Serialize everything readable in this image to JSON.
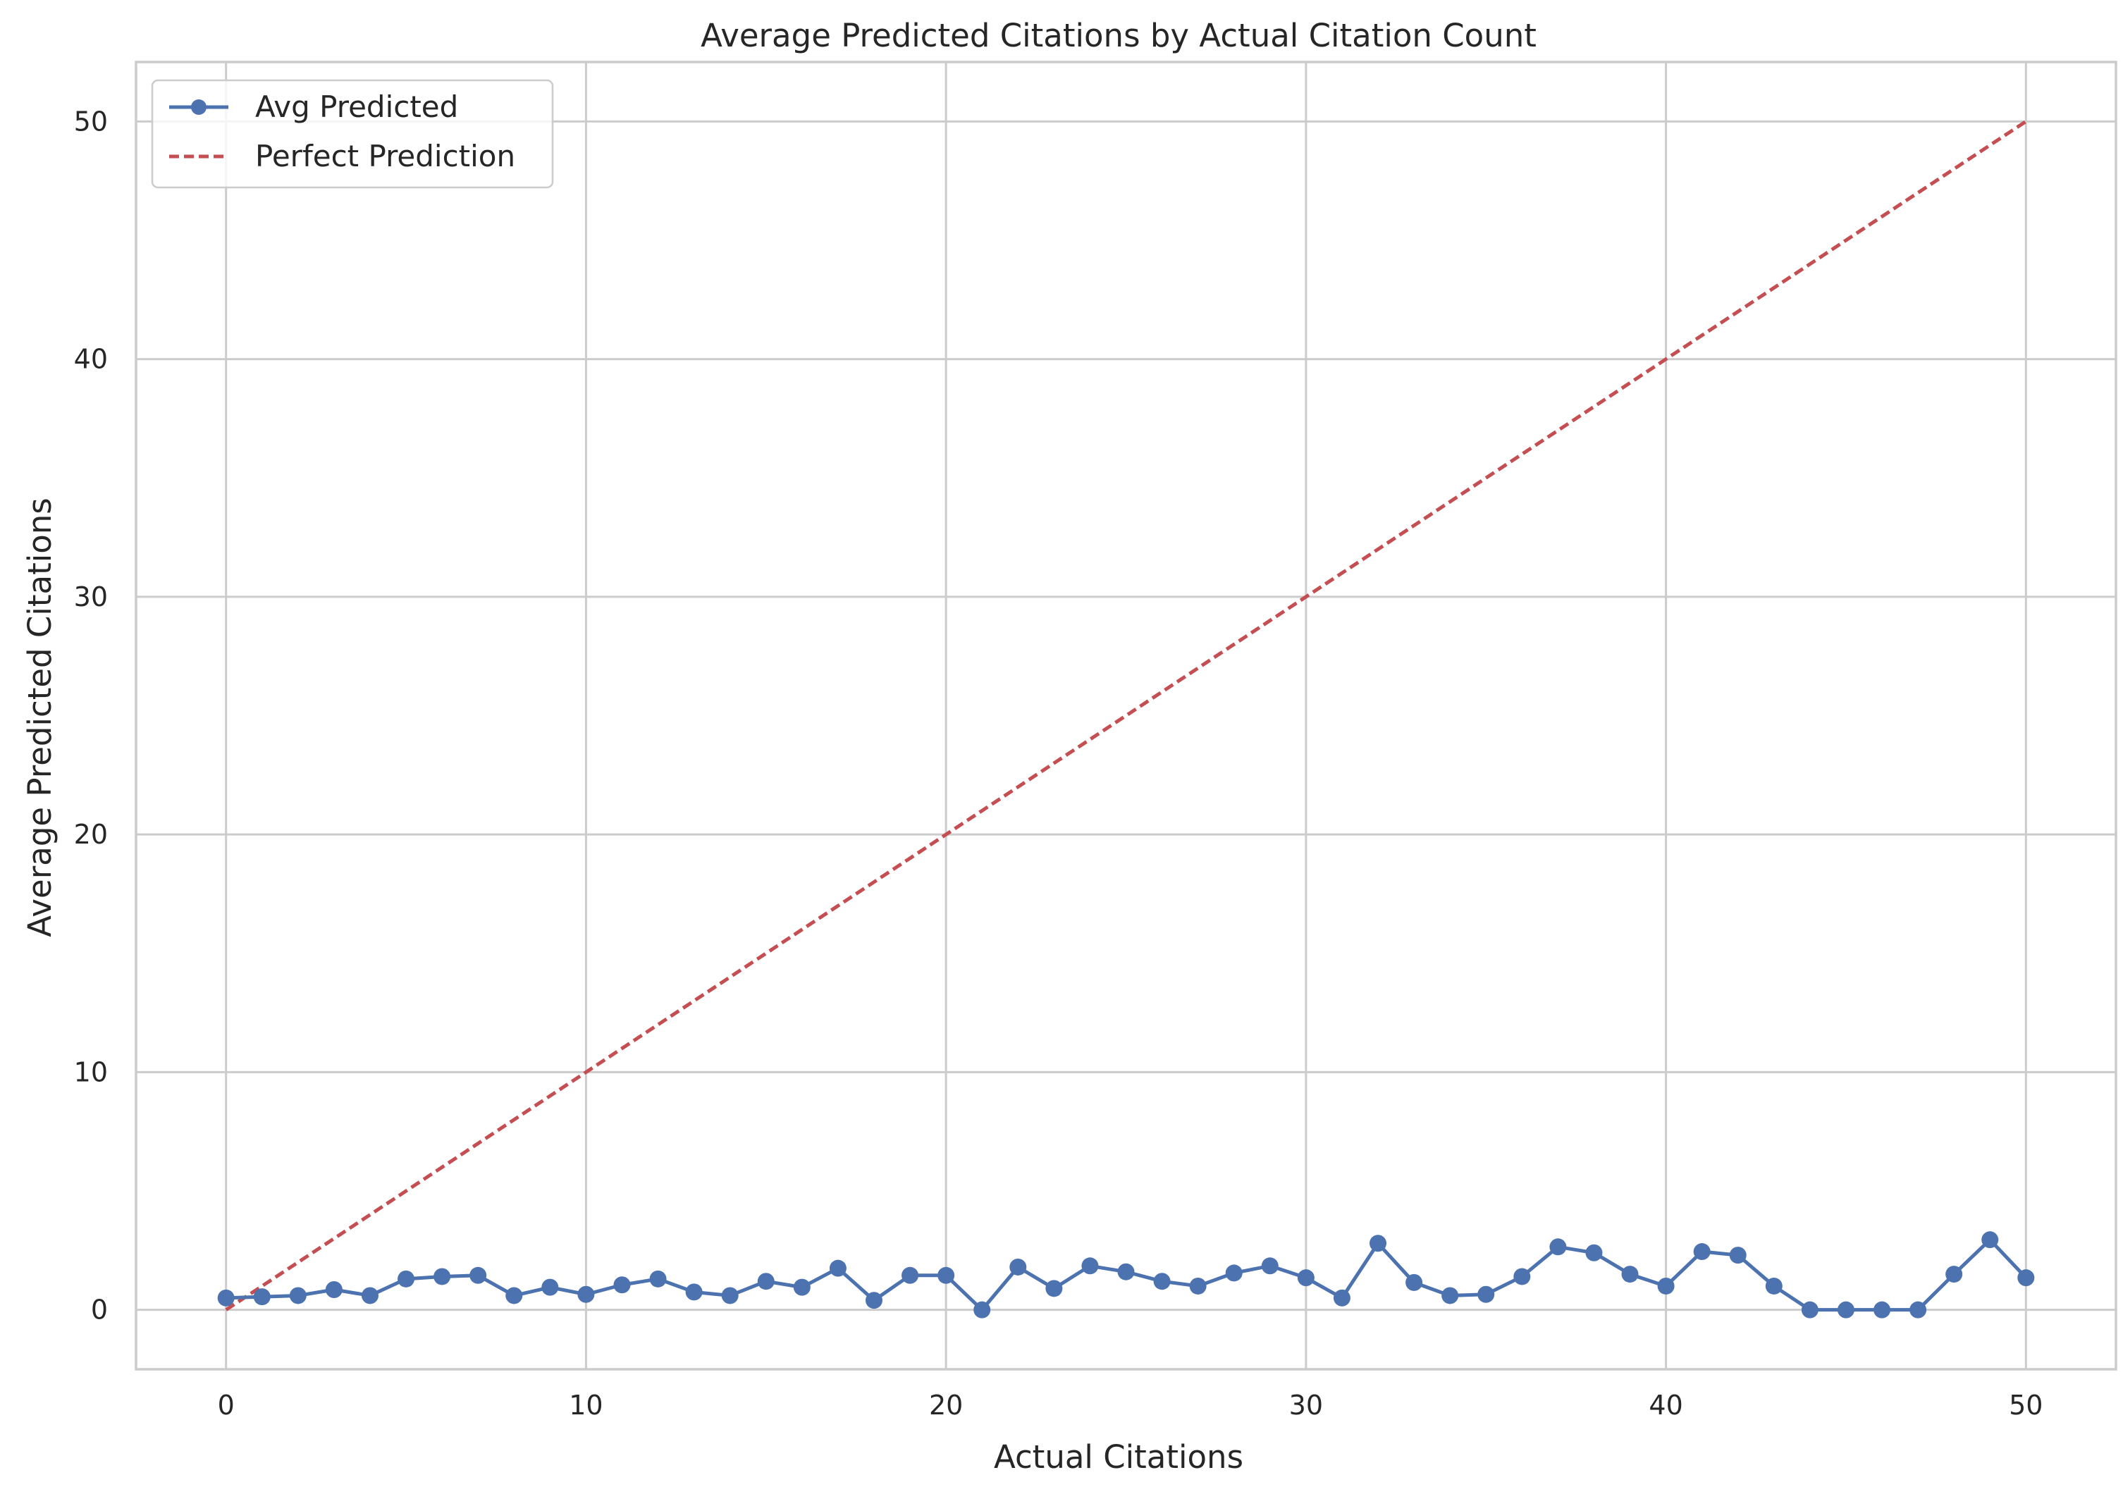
{
  "chart_data": {
    "type": "line",
    "title": "Average Predicted Citations by Actual Citation Count",
    "xlabel": "Actual Citations",
    "ylabel": "Average Predicted Citations",
    "xlim": [
      -2.5,
      52.5
    ],
    "ylim": [
      -2.5,
      52.5
    ],
    "xticks": [
      0,
      10,
      20,
      30,
      40,
      50
    ],
    "yticks": [
      0,
      10,
      20,
      30,
      40,
      50
    ],
    "grid": true,
    "legend_position": "top-left",
    "series": [
      {
        "name": "Avg Predicted",
        "style": "solid-markers",
        "color": "#4c72b0",
        "x": [
          0,
          1,
          2,
          3,
          4,
          5,
          6,
          7,
          8,
          9,
          10,
          11,
          12,
          13,
          14,
          15,
          16,
          17,
          18,
          19,
          20,
          21,
          22,
          23,
          24,
          25,
          26,
          27,
          28,
          29,
          30,
          31,
          32,
          33,
          34,
          35,
          36,
          37,
          38,
          39,
          40,
          41,
          42,
          43,
          44,
          45,
          46,
          47,
          48,
          49,
          50
        ],
        "y": [
          0.5,
          0.55,
          0.6,
          0.85,
          0.6,
          1.3,
          1.4,
          1.45,
          0.6,
          0.95,
          0.65,
          1.05,
          1.3,
          0.75,
          0.6,
          1.2,
          0.95,
          1.75,
          0.4,
          1.45,
          1.45,
          0.0,
          1.8,
          0.9,
          1.85,
          1.6,
          1.2,
          1.0,
          1.55,
          1.85,
          1.35,
          0.5,
          2.8,
          1.15,
          0.6,
          0.65,
          1.4,
          2.65,
          2.4,
          1.5,
          1.0,
          2.45,
          2.3,
          1.0,
          0.0,
          0.0,
          0.0,
          0.0,
          1.5,
          2.95,
          1.35
        ]
      },
      {
        "name": "Perfect Prediction",
        "style": "dashed",
        "color": "#c44e52",
        "x": [
          0,
          50
        ],
        "y": [
          0,
          50
        ]
      }
    ]
  }
}
